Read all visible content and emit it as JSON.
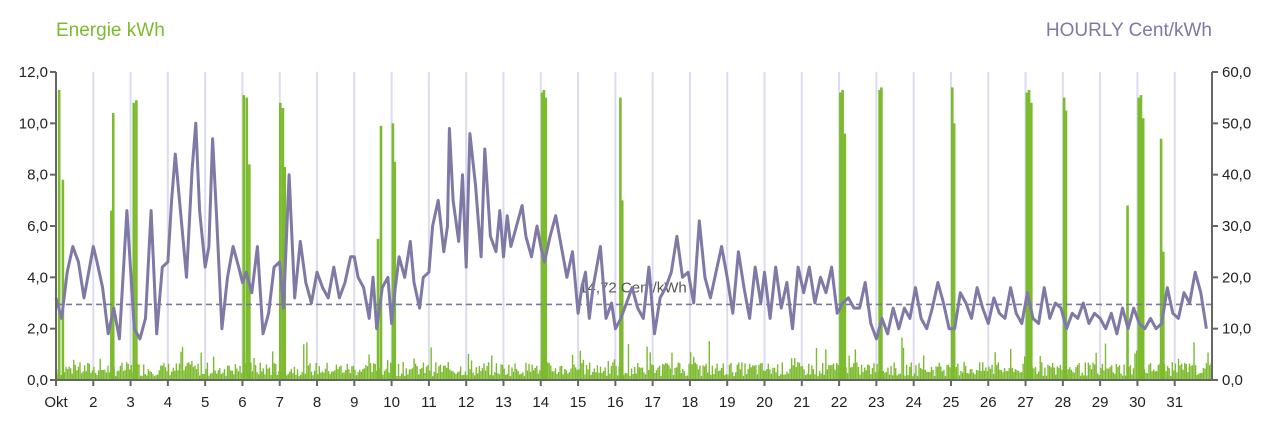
{
  "legend": {
    "left_label": "Energie kWh",
    "right_label": "HOURLY Cent/kWh"
  },
  "avg_label": "14,72 Cent/kWh",
  "colors": {
    "energy": "#7cbb2e",
    "price": "#7f79a6",
    "grid": "#dcdcf0",
    "axis": "#666666"
  },
  "chart_data": {
    "type": "bar",
    "x_ticks": [
      "Okt",
      "2",
      "3",
      "4",
      "5",
      "6",
      "7",
      "8",
      "9",
      "10",
      "11",
      "12",
      "13",
      "14",
      "15",
      "16",
      "17",
      "18",
      "19",
      "20",
      "21",
      "22",
      "23",
      "24",
      "25",
      "26",
      "27",
      "28",
      "29",
      "30",
      "31"
    ],
    "y_left": {
      "label": "Energie kWh",
      "range": [
        0,
        12
      ],
      "ticks": [
        "0,0",
        "2,0",
        "4,0",
        "6,0",
        "8,0",
        "10,0",
        "12,0"
      ]
    },
    "y_right": {
      "label": "HOURLY Cent/kWh",
      "range": [
        0,
        60
      ],
      "ticks": [
        "0,0",
        "10,0",
        "20,0",
        "30,0",
        "40,0",
        "50,0",
        "60,0"
      ]
    },
    "average_price": 14.72,
    "energy_peaks": [
      {
        "day": 1.05,
        "kwh": 11.3
      },
      {
        "day": 1.15,
        "kwh": 7.8
      },
      {
        "day": 2.5,
        "kwh": 10.4
      },
      {
        "day": 2.45,
        "kwh": 6.6
      },
      {
        "day": 3.05,
        "kwh": 10.8
      },
      {
        "day": 3.12,
        "kwh": 10.9
      },
      {
        "day": 6.0,
        "kwh": 11.1
      },
      {
        "day": 6.08,
        "kwh": 11.0
      },
      {
        "day": 6.15,
        "kwh": 8.4
      },
      {
        "day": 6.98,
        "kwh": 10.8
      },
      {
        "day": 7.05,
        "kwh": 10.6
      },
      {
        "day": 7.1,
        "kwh": 8.3
      },
      {
        "day": 9.6,
        "kwh": 5.5
      },
      {
        "day": 9.68,
        "kwh": 9.9
      },
      {
        "day": 10.0,
        "kwh": 10.0
      },
      {
        "day": 10.05,
        "kwh": 8.5
      },
      {
        "day": 14.0,
        "kwh": 11.2
      },
      {
        "day": 14.05,
        "kwh": 11.3
      },
      {
        "day": 14.1,
        "kwh": 11.0
      },
      {
        "day": 16.1,
        "kwh": 11.0
      },
      {
        "day": 16.15,
        "kwh": 7.0
      },
      {
        "day": 22.0,
        "kwh": 11.2
      },
      {
        "day": 22.06,
        "kwh": 11.3
      },
      {
        "day": 22.12,
        "kwh": 9.6
      },
      {
        "day": 23.05,
        "kwh": 11.3
      },
      {
        "day": 23.1,
        "kwh": 11.4
      },
      {
        "day": 25.0,
        "kwh": 11.4
      },
      {
        "day": 25.05,
        "kwh": 10.0
      },
      {
        "day": 27.0,
        "kwh": 11.2
      },
      {
        "day": 27.06,
        "kwh": 11.3
      },
      {
        "day": 27.12,
        "kwh": 10.8
      },
      {
        "day": 28.0,
        "kwh": 11.0
      },
      {
        "day": 28.05,
        "kwh": 10.5
      },
      {
        "day": 29.7,
        "kwh": 6.8
      },
      {
        "day": 30.0,
        "kwh": 11.0
      },
      {
        "day": 30.06,
        "kwh": 11.1
      },
      {
        "day": 30.12,
        "kwh": 10.2
      },
      {
        "day": 30.6,
        "kwh": 9.4
      },
      {
        "day": 30.66,
        "kwh": 5.0
      }
    ],
    "price_series": [
      [
        1.0,
        16
      ],
      [
        1.15,
        12
      ],
      [
        1.3,
        21
      ],
      [
        1.45,
        26
      ],
      [
        1.6,
        23
      ],
      [
        1.75,
        16
      ],
      [
        1.9,
        22
      ],
      [
        2.0,
        26
      ],
      [
        2.1,
        23
      ],
      [
        2.25,
        18
      ],
      [
        2.4,
        9
      ],
      [
        2.55,
        14
      ],
      [
        2.7,
        8
      ],
      [
        2.9,
        33
      ],
      [
        3.1,
        10
      ],
      [
        3.25,
        8
      ],
      [
        3.4,
        12
      ],
      [
        3.55,
        33
      ],
      [
        3.7,
        9
      ],
      [
        3.85,
        22
      ],
      [
        4.0,
        23
      ],
      [
        4.1,
        35
      ],
      [
        4.2,
        44
      ],
      [
        4.35,
        32
      ],
      [
        4.5,
        20
      ],
      [
        4.65,
        41
      ],
      [
        4.75,
        50
      ],
      [
        4.85,
        33
      ],
      [
        5.0,
        22
      ],
      [
        5.1,
        26
      ],
      [
        5.2,
        47
      ],
      [
        5.3,
        33
      ],
      [
        5.45,
        10
      ],
      [
        5.6,
        20
      ],
      [
        5.75,
        26
      ],
      [
        5.9,
        22
      ],
      [
        6.0,
        19
      ],
      [
        6.1,
        21
      ],
      [
        6.25,
        17
      ],
      [
        6.4,
        26
      ],
      [
        6.55,
        9
      ],
      [
        6.7,
        13
      ],
      [
        6.85,
        22
      ],
      [
        7.0,
        23
      ],
      [
        7.1,
        14
      ],
      [
        7.25,
        40
      ],
      [
        7.4,
        16
      ],
      [
        7.55,
        27
      ],
      [
        7.7,
        19
      ],
      [
        7.85,
        15
      ],
      [
        8.0,
        21
      ],
      [
        8.15,
        18
      ],
      [
        8.3,
        16
      ],
      [
        8.45,
        22
      ],
      [
        8.6,
        16
      ],
      [
        8.75,
        19
      ],
      [
        8.9,
        24
      ],
      [
        9.0,
        24
      ],
      [
        9.1,
        20
      ],
      [
        9.25,
        18
      ],
      [
        9.4,
        12
      ],
      [
        9.5,
        20
      ],
      [
        9.6,
        10
      ],
      [
        9.75,
        18
      ],
      [
        9.9,
        20
      ],
      [
        10.0,
        11
      ],
      [
        10.1,
        18
      ],
      [
        10.2,
        24
      ],
      [
        10.35,
        20
      ],
      [
        10.5,
        27
      ],
      [
        10.6,
        19
      ],
      [
        10.75,
        14
      ],
      [
        10.85,
        20
      ],
      [
        11.0,
        21
      ],
      [
        11.1,
        30
      ],
      [
        11.25,
        35
      ],
      [
        11.4,
        25
      ],
      [
        11.5,
        30
      ],
      [
        11.55,
        49
      ],
      [
        11.65,
        35
      ],
      [
        11.8,
        27
      ],
      [
        11.9,
        40
      ],
      [
        12.0,
        22
      ],
      [
        12.1,
        48
      ],
      [
        12.25,
        38
      ],
      [
        12.4,
        24
      ],
      [
        12.5,
        45
      ],
      [
        12.65,
        28
      ],
      [
        12.8,
        25
      ],
      [
        12.9,
        33
      ],
      [
        13.0,
        24
      ],
      [
        13.1,
        32
      ],
      [
        13.2,
        26
      ],
      [
        13.35,
        30
      ],
      [
        13.5,
        34
      ],
      [
        13.6,
        28
      ],
      [
        13.75,
        24
      ],
      [
        13.9,
        30
      ],
      [
        14.0,
        26
      ],
      [
        14.1,
        23
      ],
      [
        14.25,
        28
      ],
      [
        14.4,
        32
      ],
      [
        14.55,
        26
      ],
      [
        14.7,
        20
      ],
      [
        14.85,
        25
      ],
      [
        15.0,
        13
      ],
      [
        15.1,
        18
      ],
      [
        15.2,
        21
      ],
      [
        15.3,
        12
      ],
      [
        15.4,
        18
      ],
      [
        15.6,
        26
      ],
      [
        15.75,
        12
      ],
      [
        15.9,
        15
      ],
      [
        16.0,
        10
      ],
      [
        16.15,
        12
      ],
      [
        16.3,
        15
      ],
      [
        16.45,
        18
      ],
      [
        16.6,
        14
      ],
      [
        16.75,
        12
      ],
      [
        16.9,
        22
      ],
      [
        17.05,
        9
      ],
      [
        17.2,
        16
      ],
      [
        17.35,
        18
      ],
      [
        17.5,
        21
      ],
      [
        17.65,
        28
      ],
      [
        17.8,
        20
      ],
      [
        17.95,
        21
      ],
      [
        18.1,
        15
      ],
      [
        18.25,
        31
      ],
      [
        18.4,
        20
      ],
      [
        18.55,
        16
      ],
      [
        18.7,
        21
      ],
      [
        18.85,
        26
      ],
      [
        19.0,
        20
      ],
      [
        19.15,
        13
      ],
      [
        19.3,
        25
      ],
      [
        19.45,
        18
      ],
      [
        19.6,
        12
      ],
      [
        19.75,
        22
      ],
      [
        19.9,
        15
      ],
      [
        20.0,
        21
      ],
      [
        20.15,
        12
      ],
      [
        20.3,
        22
      ],
      [
        20.45,
        14
      ],
      [
        20.6,
        19
      ],
      [
        20.75,
        10
      ],
      [
        20.9,
        22
      ],
      [
        21.05,
        17
      ],
      [
        21.2,
        22
      ],
      [
        21.35,
        15
      ],
      [
        21.5,
        20
      ],
      [
        21.65,
        17
      ],
      [
        21.8,
        22
      ],
      [
        21.95,
        13
      ],
      [
        22.1,
        15
      ],
      [
        22.25,
        16
      ],
      [
        22.4,
        14
      ],
      [
        22.55,
        14
      ],
      [
        22.7,
        19
      ],
      [
        22.85,
        11
      ],
      [
        23.0,
        8
      ],
      [
        23.15,
        12
      ],
      [
        23.3,
        9
      ],
      [
        23.45,
        14
      ],
      [
        23.6,
        10
      ],
      [
        23.75,
        14
      ],
      [
        23.9,
        12
      ],
      [
        24.05,
        18
      ],
      [
        24.2,
        12
      ],
      [
        24.35,
        10
      ],
      [
        24.5,
        14
      ],
      [
        24.65,
        19
      ],
      [
        24.8,
        15
      ],
      [
        24.95,
        10
      ],
      [
        25.1,
        10
      ],
      [
        25.25,
        17
      ],
      [
        25.4,
        15
      ],
      [
        25.55,
        12
      ],
      [
        25.7,
        18
      ],
      [
        25.85,
        14
      ],
      [
        26.0,
        11
      ],
      [
        26.15,
        16
      ],
      [
        26.3,
        13
      ],
      [
        26.45,
        12
      ],
      [
        26.6,
        18
      ],
      [
        26.75,
        13
      ],
      [
        26.9,
        11
      ],
      [
        27.05,
        17
      ],
      [
        27.2,
        12
      ],
      [
        27.35,
        11
      ],
      [
        27.5,
        18
      ],
      [
        27.65,
        12
      ],
      [
        27.8,
        15
      ],
      [
        27.95,
        14
      ],
      [
        28.1,
        10
      ],
      [
        28.25,
        13
      ],
      [
        28.4,
        12
      ],
      [
        28.55,
        15
      ],
      [
        28.7,
        11
      ],
      [
        28.85,
        13
      ],
      [
        29.0,
        12
      ],
      [
        29.15,
        10
      ],
      [
        29.3,
        13
      ],
      [
        29.45,
        9
      ],
      [
        29.6,
        14
      ],
      [
        29.75,
        10
      ],
      [
        29.9,
        14
      ],
      [
        30.05,
        11
      ],
      [
        30.2,
        10
      ],
      [
        30.35,
        12
      ],
      [
        30.5,
        10
      ],
      [
        30.65,
        11
      ],
      [
        30.8,
        18
      ],
      [
        30.95,
        13
      ],
      [
        31.1,
        12
      ],
      [
        31.25,
        17
      ],
      [
        31.4,
        15
      ],
      [
        31.55,
        21
      ],
      [
        31.7,
        17
      ],
      [
        31.85,
        10
      ]
    ]
  }
}
